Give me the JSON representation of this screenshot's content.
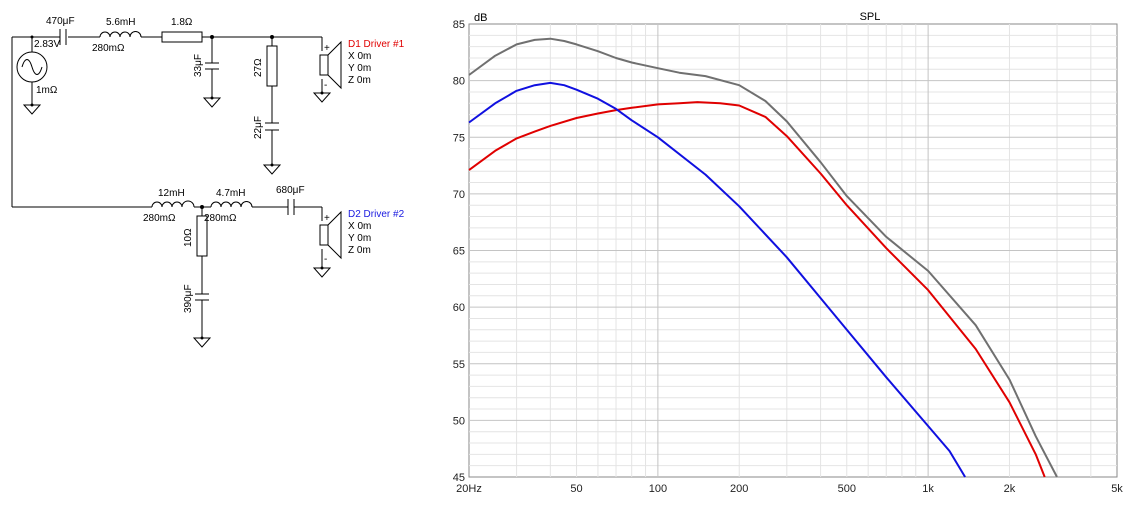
{
  "schematic": {
    "source": {
      "voltage": "2.83V",
      "resistance": "1mΩ"
    },
    "series_cap": {
      "value": "470μF"
    },
    "series_inductor": {
      "value": "5.6mH",
      "resistance": "280mΩ"
    },
    "series_resistor": {
      "value": "1.8Ω"
    },
    "shunt_cap": {
      "value": "33μF"
    },
    "shunt_resistor": {
      "value": "27Ω"
    },
    "shunt_resistor_cap": {
      "value": "22μF"
    },
    "driver1": {
      "name": "D1 Driver #1",
      "x": "X 0m",
      "y": "Y 0m",
      "z": "Z 0m",
      "plus": "+",
      "minus": "-",
      "color": "#e00000"
    },
    "inductor2": {
      "value": "12mH",
      "resistance": "280mΩ"
    },
    "inductor3": {
      "value": "4.7mH",
      "resistance": "280mΩ"
    },
    "series_cap2": {
      "value": "680μF"
    },
    "shunt_resistor2": {
      "value": "10Ω"
    },
    "shunt_cap2": {
      "value": "390μF"
    },
    "driver2": {
      "name": "D2 Driver #2",
      "x": "X 0m",
      "y": "Y 0m",
      "z": "Z 0m",
      "plus": "+",
      "minus": "-",
      "color": "#1a1ae0"
    }
  },
  "chart_data": {
    "type": "line",
    "title": "SPL",
    "ylabel": "dB",
    "xscale": "log",
    "xlim": [
      20,
      5000
    ],
    "ylim": [
      45,
      85
    ],
    "xticks": [
      {
        "value": 20,
        "label": "20Hz"
      },
      {
        "value": 50,
        "label": "50"
      },
      {
        "value": 100,
        "label": "100"
      },
      {
        "value": 200,
        "label": "200"
      },
      {
        "value": 500,
        "label": "500"
      },
      {
        "value": 1000,
        "label": "1k"
      },
      {
        "value": 2000,
        "label": "2k"
      },
      {
        "value": 5000,
        "label": "5k"
      }
    ],
    "yticks": [
      {
        "value": 85,
        "label": "85"
      },
      {
        "value": 80,
        "label": "80"
      },
      {
        "value": 75,
        "label": "75"
      },
      {
        "value": 70,
        "label": "70"
      },
      {
        "value": 65,
        "label": "65"
      },
      {
        "value": 60,
        "label": "60"
      },
      {
        "value": 55,
        "label": "55"
      },
      {
        "value": 50,
        "label": "50"
      },
      {
        "value": 45,
        "label": "45"
      }
    ],
    "grid": true,
    "series": [
      {
        "color": "#707070",
        "x": [
          20,
          25,
          30,
          35,
          40,
          45,
          50,
          60,
          70,
          80,
          100,
          120,
          150,
          200,
          250,
          300,
          400,
          500,
          700,
          1000,
          1500,
          2000,
          2500,
          3000
        ],
        "y": [
          80.5,
          82.2,
          83.2,
          83.6,
          83.7,
          83.5,
          83.2,
          82.6,
          82.0,
          81.6,
          81.1,
          80.7,
          80.4,
          79.6,
          78.2,
          76.4,
          72.8,
          69.8,
          66.2,
          63.2,
          58.4,
          53.6,
          48.6,
          45.0
        ]
      },
      {
        "color": "#e00000",
        "x": [
          20,
          25,
          30,
          35,
          40,
          50,
          60,
          70,
          80,
          100,
          120,
          140,
          170,
          200,
          250,
          300,
          400,
          500,
          700,
          1000,
          1500,
          2000,
          2500,
          2700
        ],
        "y": [
          72.1,
          73.8,
          74.9,
          75.5,
          76.0,
          76.7,
          77.1,
          77.4,
          77.6,
          77.9,
          78.0,
          78.1,
          78.0,
          77.8,
          76.8,
          75.1,
          71.8,
          69.0,
          65.2,
          61.5,
          56.3,
          51.6,
          47.0,
          45.0
        ]
      },
      {
        "color": "#1010e0",
        "x": [
          20,
          25,
          30,
          35,
          40,
          45,
          50,
          60,
          70,
          80,
          100,
          150,
          200,
          300,
          400,
          500,
          700,
          1000,
          1200,
          1370
        ],
        "y": [
          76.3,
          78.0,
          79.1,
          79.6,
          79.8,
          79.6,
          79.2,
          78.4,
          77.5,
          76.5,
          75.0,
          71.7,
          68.9,
          64.4,
          60.8,
          58.0,
          53.8,
          49.5,
          47.3,
          45.0
        ]
      }
    ]
  }
}
